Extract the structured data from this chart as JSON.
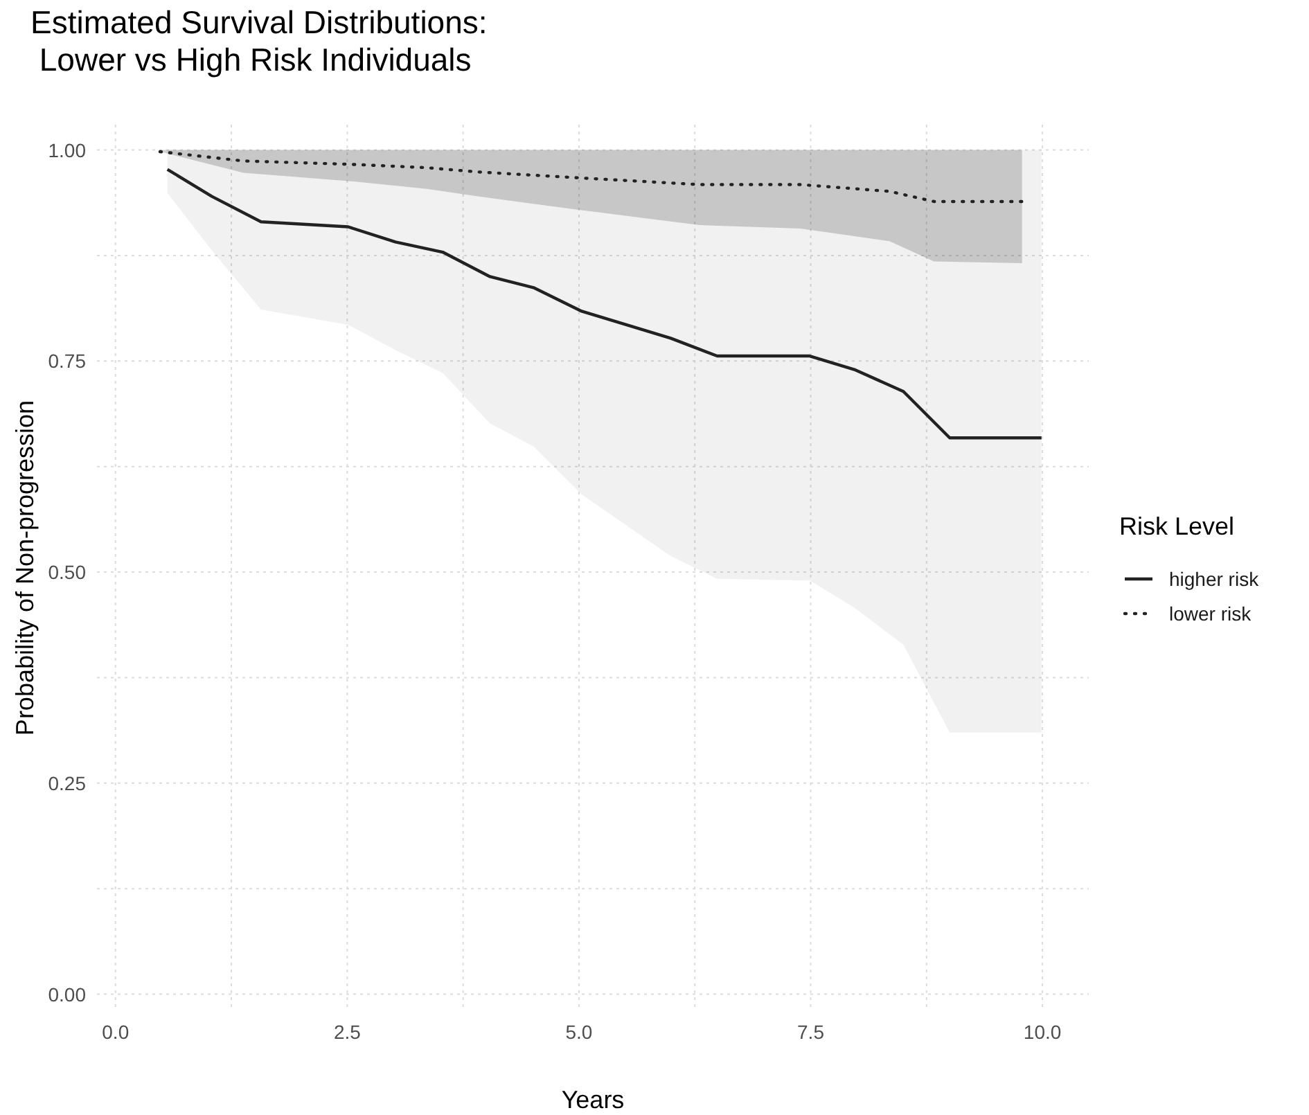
{
  "chart_data": {
    "type": "line",
    "title": "Estimated Survival Distributions:\n Lower vs High Risk Individuals",
    "xlabel": "Years",
    "ylabel": "Probability of Non-progression",
    "legend_title": "Risk Level",
    "legend": "right",
    "grid": true,
    "xlim": [
      -0.2,
      10.5
    ],
    "ylim": [
      -0.02,
      1.03
    ],
    "xticks": [
      {
        "value": 0,
        "label": "0.0"
      },
      {
        "value": 1.25,
        "label": null
      },
      {
        "value": 2.5,
        "label": "2.5"
      },
      {
        "value": 3.75,
        "label": null
      },
      {
        "value": 5,
        "label": "5.0"
      },
      {
        "value": 6.25,
        "label": null
      },
      {
        "value": 7.5,
        "label": "7.5"
      },
      {
        "value": 8.75,
        "label": null
      },
      {
        "value": 10,
        "label": "10.0"
      }
    ],
    "yticks": [
      {
        "value": 0,
        "label": "0.00"
      },
      {
        "value": 0.125,
        "label": null
      },
      {
        "value": 0.25,
        "label": "0.25"
      },
      {
        "value": 0.375,
        "label": null
      },
      {
        "value": 0.5,
        "label": "0.50"
      },
      {
        "value": 0.625,
        "label": null
      },
      {
        "value": 0.75,
        "label": "0.75"
      },
      {
        "value": 0.875,
        "label": null
      },
      {
        "value": 1,
        "label": "1.00"
      }
    ],
    "series": [
      {
        "name": "higher risk",
        "color": "#222222",
        "line_style": "solid",
        "x": [
          0.56,
          1.04,
          1.57,
          2.51,
          3.02,
          3.53,
          4.04,
          4.51,
          5.03,
          5.99,
          6.49,
          7.49,
          7.97,
          8.5,
          9.0,
          9.99
        ],
        "values": [
          0.977,
          0.945,
          0.915,
          0.909,
          0.891,
          0.879,
          0.85,
          0.837,
          0.809,
          0.777,
          0.756,
          0.756,
          0.74,
          0.714,
          0.659,
          0.659
        ],
        "lower": [
          0.949,
          0.881,
          0.811,
          0.793,
          0.763,
          0.736,
          0.676,
          0.649,
          0.592,
          0.519,
          0.492,
          0.49,
          0.458,
          0.414,
          0.31,
          0.31
        ],
        "upper": [
          1,
          1,
          1,
          1,
          1,
          1,
          1,
          1,
          1,
          1,
          1,
          1,
          1,
          1,
          1,
          1
        ]
      },
      {
        "name": "lower risk",
        "color": "#222222",
        "line_style": "dotted",
        "x": [
          0.48,
          1.38,
          2.54,
          3.36,
          3.91,
          5.0,
          6.3,
          7.39,
          8.35,
          8.83,
          9.78
        ],
        "values": [
          0.998,
          0.987,
          0.983,
          0.979,
          0.974,
          0.967,
          0.959,
          0.959,
          0.951,
          0.939,
          0.939
        ],
        "lower": [
          0.998,
          0.973,
          0.963,
          0.954,
          0.945,
          0.929,
          0.911,
          0.907,
          0.892,
          0.868,
          0.866
        ],
        "upper": [
          1,
          1,
          1,
          1,
          1,
          1,
          1,
          1,
          1,
          1,
          1
        ]
      }
    ]
  }
}
